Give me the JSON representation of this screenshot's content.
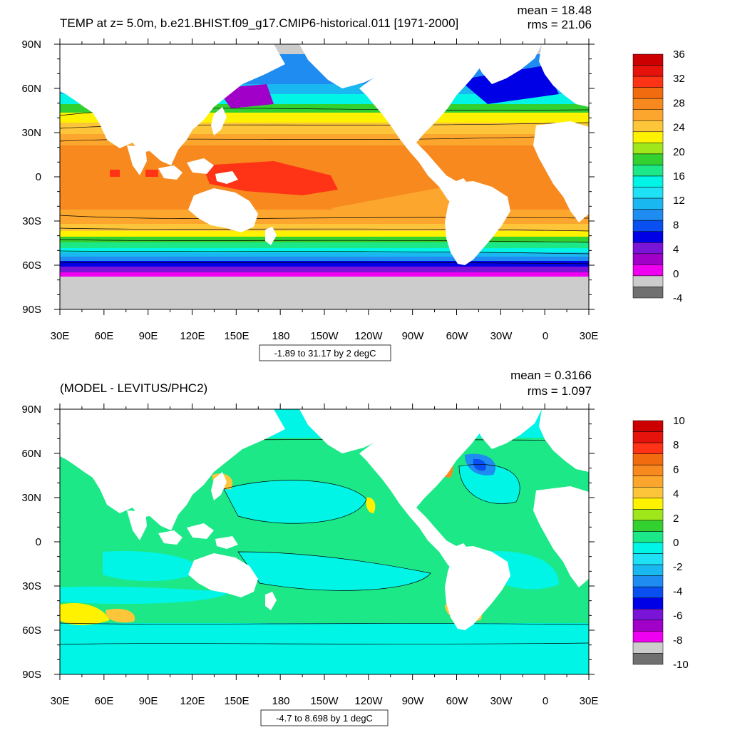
{
  "panels": [
    {
      "id": "temp",
      "title": "TEMP at z=   5.0m, b.e21.BHIST.f09_g17.CMIP6-historical.011 [1971-2000]",
      "stats": {
        "mean": "mean = 18.48",
        "rms": "rms = 21.06"
      },
      "contour_info": "-1.89 to 31.17 by 2 degC",
      "lat_labels": [
        "90N",
        "60N",
        "30N",
        "0",
        "30S",
        "60S",
        "90S"
      ],
      "lon_labels": [
        "30E",
        "60E",
        "90E",
        "120E",
        "150E",
        "180",
        "150W",
        "120W",
        "90W",
        "60W",
        "30W",
        "0",
        "30E"
      ],
      "colorbar": {
        "labels": [
          "36",
          "32",
          "28",
          "24",
          "20",
          "16",
          "12",
          "8",
          "4",
          "0",
          "-4"
        ],
        "colors": [
          "#cc0000",
          "#e6130c",
          "#ff3316",
          "#f26b0f",
          "#f7891f",
          "#fca62e",
          "#fdc63a",
          "#fff200",
          "#9fe61a",
          "#33d130",
          "#1ce888",
          "#00f5e6",
          "#1ee1f5",
          "#19b8f0",
          "#1e8cf0",
          "#0a50f0",
          "#0000e6",
          "#7a14d6",
          "#a000c8",
          "#f000f0",
          "#cccccc",
          "#707070"
        ]
      }
    },
    {
      "id": "diff",
      "title": "(MODEL - LEVITUS/PHC2)",
      "stats": {
        "mean": "mean = 0.3166",
        "rms": "rms = 1.097"
      },
      "contour_info": "-4.7 to 8.698 by 1 degC",
      "lat_labels": [
        "90N",
        "60N",
        "30N",
        "0",
        "30S",
        "60S",
        "90S"
      ],
      "lon_labels": [
        "30E",
        "60E",
        "90E",
        "120E",
        "150E",
        "180",
        "150W",
        "120W",
        "90W",
        "60W",
        "30W",
        "0",
        "30E"
      ],
      "colorbar": {
        "labels": [
          "10",
          "8",
          "6",
          "4",
          "2",
          "0",
          "-2",
          "-4",
          "-6",
          "-8",
          "-10"
        ],
        "colors": [
          "#cc0000",
          "#e6130c",
          "#ff3316",
          "#f26b0f",
          "#f7891f",
          "#fca62e",
          "#fdc63a",
          "#fff200",
          "#9fe61a",
          "#33d130",
          "#1ce888",
          "#00f5e6",
          "#1ee1f5",
          "#19b8f0",
          "#1e8cf0",
          "#0a50f0",
          "#0000e6",
          "#7a14d6",
          "#a000c8",
          "#f000f0",
          "#cccccc",
          "#707070"
        ]
      }
    }
  ],
  "colors": {
    "land": "#ffffff",
    "ice": "#cccccc",
    "contour_line": "#000000",
    "temp_tropical": "#f7891f",
    "temp_warm_pool": "#ff3316",
    "diff_background": "#1ce888",
    "diff_near_zero": "#33d130",
    "diff_negative": "#00f5e6",
    "diff_positive": "#fff200"
  }
}
